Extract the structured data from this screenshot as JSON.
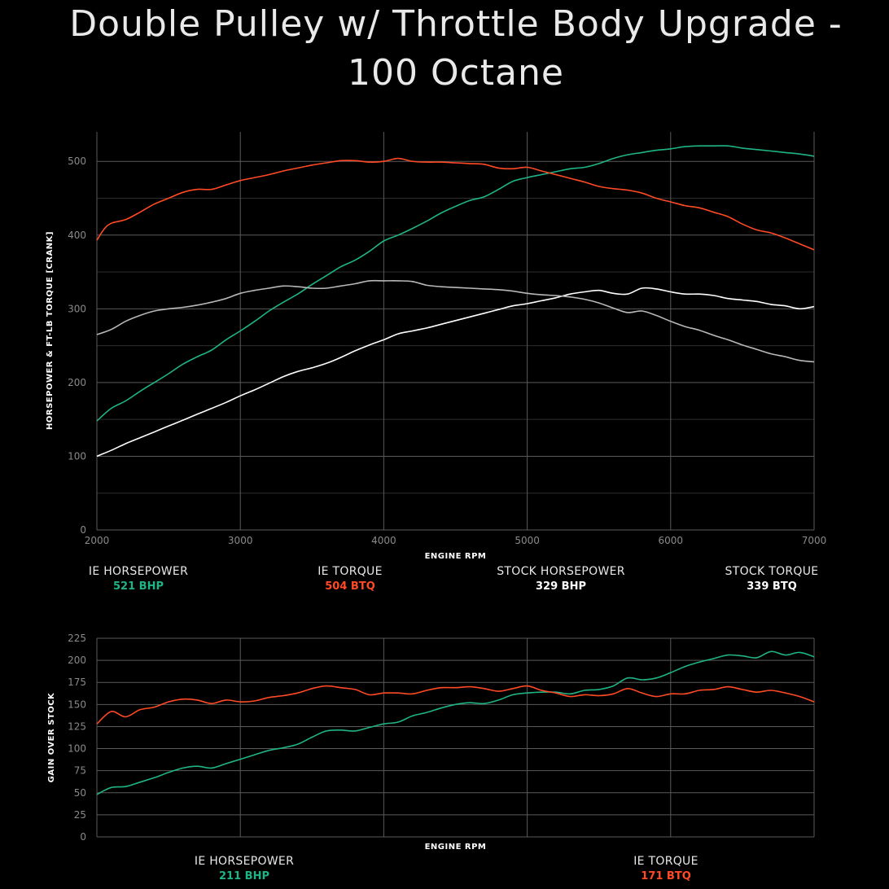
{
  "page": {
    "title": "Double Pulley w/ Throttle Body Upgrade - 100 Octane"
  },
  "colors": {
    "ie_hp": "#1fb486",
    "ie_tq": "#ff4a25",
    "stock_hp": "#ffffff",
    "stock_tq": "#b8b8b8",
    "grid": "#5a5a5a"
  },
  "chart_data": [
    {
      "type": "line",
      "xlabel": "ENGINE RPM",
      "ylabel": "HORSEPOWER & FT-LB TORQUE [CRANK]",
      "xlim": [
        2000,
        7000
      ],
      "ylim": [
        0,
        540
      ],
      "x_ticks": [
        2000,
        3000,
        4000,
        5000,
        6000,
        7000
      ],
      "y_ticks": [
        0,
        100,
        200,
        300,
        400,
        500
      ],
      "x_tick_labels": [
        "2000",
        "3000",
        "4000",
        "5000",
        "6000",
        "7000"
      ],
      "y_tick_labels": [
        "0",
        "100",
        "200",
        "300",
        "400",
        "500"
      ],
      "grid": true,
      "series": [
        {
          "name": "IE HORSEPOWER",
          "color": "#1fb486",
          "x": [
            2000,
            2100,
            2200,
            2300,
            2400,
            2500,
            2600,
            2700,
            2800,
            2900,
            3000,
            3100,
            3200,
            3300,
            3400,
            3500,
            3600,
            3700,
            3800,
            3900,
            4000,
            4100,
            4200,
            4300,
            4400,
            4500,
            4600,
            4700,
            4800,
            4900,
            5000,
            5100,
            5200,
            5300,
            5400,
            5500,
            5600,
            5700,
            5800,
            5900,
            6000,
            6100,
            6200,
            6300,
            6400,
            6500,
            6600,
            6700,
            6800,
            6900,
            7000
          ],
          "y": [
            148,
            165,
            175,
            188,
            200,
            212,
            225,
            235,
            244,
            258,
            270,
            283,
            297,
            309,
            320,
            333,
            345,
            357,
            366,
            378,
            392,
            400,
            409,
            419,
            430,
            439,
            447,
            452,
            462,
            473,
            478,
            482,
            486,
            490,
            492,
            497,
            504,
            509,
            512,
            515,
            517,
            520,
            521,
            521,
            521,
            518,
            516,
            514,
            512,
            510,
            507
          ]
        },
        {
          "name": "IE TORQUE",
          "color": "#ff4a25",
          "x": [
            2000,
            2050,
            2100,
            2200,
            2300,
            2400,
            2500,
            2600,
            2700,
            2800,
            2900,
            3000,
            3100,
            3200,
            3300,
            3400,
            3500,
            3600,
            3700,
            3800,
            3900,
            4000,
            4100,
            4200,
            4300,
            4400,
            4500,
            4600,
            4700,
            4800,
            4900,
            5000,
            5100,
            5200,
            5300,
            5400,
            5500,
            5600,
            5700,
            5800,
            5900,
            6000,
            6100,
            6200,
            6300,
            6400,
            6500,
            6600,
            6700,
            6800,
            6900,
            7000
          ],
          "y": [
            393,
            408,
            416,
            421,
            431,
            442,
            450,
            458,
            462,
            462,
            468,
            474,
            478,
            482,
            487,
            491,
            495,
            498,
            501,
            501,
            499,
            500,
            504,
            500,
            499,
            499,
            498,
            497,
            496,
            491,
            490,
            492,
            487,
            482,
            477,
            472,
            466,
            463,
            461,
            457,
            450,
            445,
            440,
            437,
            431,
            425,
            415,
            407,
            403,
            396,
            388,
            380
          ]
        },
        {
          "name": "STOCK HORSEPOWER",
          "color": "#ffffff",
          "x": [
            2000,
            2100,
            2200,
            2300,
            2400,
            2500,
            2600,
            2700,
            2800,
            2900,
            3000,
            3100,
            3200,
            3300,
            3400,
            3500,
            3600,
            3700,
            3800,
            3900,
            4000,
            4100,
            4200,
            4300,
            4400,
            4500,
            4600,
            4700,
            4800,
            4900,
            5000,
            5100,
            5200,
            5300,
            5400,
            5500,
            5600,
            5700,
            5800,
            5900,
            6000,
            6100,
            6200,
            6300,
            6400,
            6500,
            6600,
            6700,
            6800,
            6900,
            7000
          ],
          "y": [
            100,
            108,
            117,
            125,
            133,
            141,
            149,
            157,
            165,
            173,
            182,
            190,
            199,
            208,
            215,
            220,
            226,
            234,
            243,
            251,
            258,
            266,
            270,
            274,
            279,
            284,
            289,
            294,
            299,
            304,
            307,
            311,
            315,
            320,
            323,
            325,
            321,
            320,
            328,
            327,
            323,
            320,
            320,
            318,
            314,
            312,
            310,
            306,
            304,
            300,
            303
          ]
        },
        {
          "name": "STOCK TORQUE",
          "color": "#b8b8b8",
          "x": [
            2000,
            2100,
            2200,
            2300,
            2400,
            2500,
            2600,
            2700,
            2800,
            2900,
            3000,
            3100,
            3200,
            3300,
            3400,
            3500,
            3600,
            3700,
            3800,
            3900,
            4000,
            4100,
            4200,
            4300,
            4400,
            4500,
            4600,
            4700,
            4800,
            4900,
            5000,
            5100,
            5200,
            5300,
            5400,
            5500,
            5600,
            5700,
            5800,
            5900,
            6000,
            6100,
            6200,
            6300,
            6400,
            6500,
            6600,
            6700,
            6800,
            6900,
            7000
          ],
          "y": [
            265,
            272,
            283,
            291,
            297,
            300,
            302,
            305,
            309,
            314,
            321,
            325,
            328,
            331,
            330,
            328,
            328,
            331,
            334,
            338,
            338,
            338,
            337,
            332,
            330,
            329,
            328,
            327,
            326,
            324,
            321,
            319,
            318,
            316,
            313,
            308,
            301,
            295,
            297,
            291,
            283,
            276,
            271,
            264,
            258,
            251,
            245,
            239,
            235,
            230,
            228
          ]
        }
      ],
      "legend": [
        {
          "label": "IE HORSEPOWER",
          "value": "521 BHP",
          "color": "#1fb486"
        },
        {
          "label": "IE TORQUE",
          "value": "504 BTQ",
          "color": "#ff4a25"
        },
        {
          "label": "STOCK HORSEPOWER",
          "value": "329 BHP",
          "color": "#ffffff"
        },
        {
          "label": "STOCK TORQUE",
          "value": "339 BTQ",
          "color": "#ffffff"
        }
      ]
    },
    {
      "type": "line",
      "xlabel": "ENGINE RPM",
      "ylabel": "GAIN OVER STOCK",
      "xlim": [
        2000,
        7000
      ],
      "ylim": [
        0,
        225
      ],
      "x_ticks": [
        2000,
        3000,
        4000,
        5000,
        6000,
        7000
      ],
      "y_ticks": [
        0,
        25,
        50,
        75,
        100,
        125,
        150,
        175,
        200,
        225
      ],
      "y_tick_labels": [
        "0",
        "25",
        "50",
        "75",
        "100",
        "125",
        "150",
        "175",
        "200",
        "225"
      ],
      "grid": true,
      "series": [
        {
          "name": "IE HORSEPOWER",
          "color": "#1fb486",
          "x": [
            2000,
            2100,
            2200,
            2300,
            2400,
            2500,
            2600,
            2700,
            2800,
            2900,
            3000,
            3100,
            3200,
            3300,
            3400,
            3500,
            3600,
            3700,
            3800,
            3900,
            4000,
            4100,
            4200,
            4300,
            4400,
            4500,
            4600,
            4700,
            4800,
            4900,
            5000,
            5100,
            5200,
            5300,
            5400,
            5500,
            5600,
            5700,
            5800,
            5900,
            6000,
            6100,
            6200,
            6300,
            6400,
            6500,
            6600,
            6700,
            6800,
            6900,
            7000
          ],
          "y": [
            48,
            56,
            57,
            62,
            67,
            73,
            78,
            80,
            78,
            83,
            88,
            93,
            98,
            101,
            105,
            113,
            120,
            121,
            120,
            124,
            128,
            130,
            137,
            141,
            146,
            150,
            152,
            151,
            155,
            161,
            163,
            164,
            164,
            162,
            166,
            167,
            171,
            180,
            178,
            180,
            186,
            193,
            198,
            202,
            206,
            205,
            203,
            210,
            206,
            209,
            204
          ]
        },
        {
          "name": "IE TORQUE",
          "color": "#ff4a25",
          "x": [
            2000,
            2100,
            2200,
            2300,
            2400,
            2500,
            2600,
            2700,
            2800,
            2900,
            3000,
            3100,
            3200,
            3300,
            3400,
            3500,
            3600,
            3700,
            3800,
            3900,
            4000,
            4100,
            4200,
            4300,
            4400,
            4500,
            4600,
            4700,
            4800,
            4900,
            5000,
            5100,
            5200,
            5300,
            5400,
            5500,
            5600,
            5700,
            5800,
            5900,
            6000,
            6100,
            6200,
            6300,
            6400,
            6500,
            6600,
            6700,
            6800,
            6900,
            7000
          ],
          "y": [
            128,
            142,
            136,
            144,
            147,
            153,
            156,
            155,
            151,
            155,
            153,
            154,
            158,
            160,
            163,
            168,
            171,
            169,
            167,
            161,
            163,
            163,
            162,
            166,
            169,
            169,
            170,
            168,
            165,
            168,
            171,
            166,
            163,
            159,
            161,
            160,
            162,
            168,
            163,
            159,
            162,
            162,
            166,
            167,
            170,
            167,
            164,
            166,
            163,
            159,
            153
          ]
        }
      ],
      "legend": [
        {
          "label": "IE HORSEPOWER",
          "value": "211 BHP",
          "color": "#1fb486"
        },
        {
          "label": "IE TORQUE",
          "value": "171 BTQ",
          "color": "#ff4a25"
        }
      ]
    }
  ]
}
